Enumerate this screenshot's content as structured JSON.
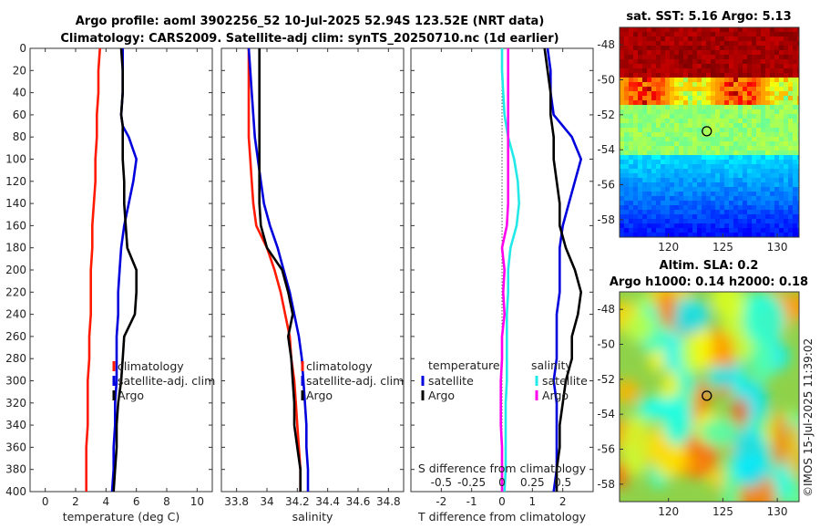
{
  "title_line1": "Argo profile: aoml 3902256_52 10-Jul-2025 52.94S 123.52E (NRT data)",
  "title_line2": "Climatology: CARS2009. Satellite-adj clim: synTS_20250710.nc (1d earlier)",
  "side_text": "©IMOS 15-Jul-2025 11:39:02",
  "colors": {
    "climatology": "#ff1a00",
    "satellite": "#0000dd",
    "argo": "#000000",
    "t_diff": "#22e8e8",
    "s_diff": "#ff00ee"
  },
  "chart_data": [
    {
      "type": "line",
      "name": "temperature",
      "xlabel": "temperature (deg C)",
      "xlim": [
        -1,
        11
      ],
      "ylim": [
        400,
        0
      ],
      "xticks": [
        "0",
        "2",
        "4",
        "6",
        "8",
        "10"
      ],
      "yticks": [
        "0",
        "20",
        "40",
        "60",
        "80",
        "100",
        "120",
        "140",
        "160",
        "180",
        "200",
        "220",
        "240",
        "260",
        "280",
        "300",
        "320",
        "340",
        "360",
        "380",
        "400"
      ],
      "legend": [
        "climatology",
        "satellite-adj. clim",
        "Argo"
      ],
      "depth": [
        0,
        20,
        40,
        60,
        70,
        80,
        100,
        120,
        140,
        160,
        180,
        200,
        220,
        240,
        260,
        280,
        300,
        320,
        340,
        360,
        380,
        400
      ],
      "series": [
        {
          "name": "climatology",
          "values": [
            3.6,
            3.5,
            3.5,
            3.4,
            3.4,
            3.4,
            3.3,
            3.3,
            3.2,
            3.1,
            3.1,
            3.0,
            3.0,
            3.0,
            2.9,
            2.9,
            2.8,
            2.8,
            2.8,
            2.7,
            2.7,
            2.7
          ]
        },
        {
          "name": "satellite-adj. clim",
          "values": [
            5.1,
            5.1,
            5.1,
            5.0,
            5.1,
            5.5,
            6.0,
            5.8,
            5.5,
            5.2,
            5.0,
            4.9,
            4.8,
            4.8,
            4.7,
            4.7,
            4.7,
            4.6,
            4.6,
            4.5,
            4.5,
            4.4
          ]
        },
        {
          "name": "Argo",
          "values": [
            5.0,
            5.1,
            5.1,
            5.0,
            5.1,
            5.1,
            5.1,
            5.2,
            5.2,
            5.3,
            5.4,
            6.0,
            6.0,
            5.9,
            5.2,
            5.1,
            5.0,
            4.8,
            4.7,
            4.7,
            4.6,
            4.5
          ]
        }
      ]
    },
    {
      "type": "line",
      "name": "salinity",
      "xlabel": "salinity",
      "xlim": [
        33.7,
        34.9
      ],
      "ylim": [
        400,
        0
      ],
      "xticks": [
        "33.8",
        "34",
        "34.2",
        "34.4",
        "34.6",
        "34.8"
      ],
      "legend": [
        "climatology",
        "satellite-adj. clim",
        "Argo"
      ],
      "depth": [
        0,
        20,
        40,
        60,
        80,
        100,
        120,
        140,
        160,
        180,
        200,
        220,
        240,
        260,
        280,
        300,
        320,
        340,
        360,
        380,
        400
      ],
      "series": [
        {
          "name": "climatology",
          "values": [
            33.88,
            33.88,
            33.88,
            33.88,
            33.88,
            33.89,
            33.9,
            33.91,
            33.93,
            34.0,
            34.05,
            34.09,
            34.12,
            34.15,
            34.16,
            34.18,
            34.19,
            34.2,
            34.21,
            34.22,
            34.22
          ]
        },
        {
          "name": "satellite-adj. clim",
          "values": [
            33.88,
            33.89,
            33.9,
            33.91,
            33.92,
            33.94,
            33.96,
            33.98,
            34.02,
            34.07,
            34.11,
            34.15,
            34.18,
            34.21,
            34.23,
            34.24,
            34.25,
            34.26,
            34.26,
            34.27,
            34.27
          ]
        },
        {
          "name": "Argo",
          "values": [
            33.95,
            33.95,
            33.95,
            33.95,
            33.95,
            33.95,
            33.95,
            33.95,
            33.96,
            34.0,
            34.1,
            34.14,
            34.17,
            34.14,
            34.16,
            34.17,
            34.18,
            34.18,
            34.2,
            34.22,
            34.22
          ]
        }
      ]
    },
    {
      "type": "line",
      "name": "difference",
      "xlabel": "T difference from climatology",
      "xlabel_top": "S difference from climatology",
      "xlim": [
        -3,
        3
      ],
      "ylim": [
        400,
        0
      ],
      "xticks": [
        "-2",
        "-1",
        "0",
        "1",
        "2"
      ],
      "xticks_top": [
        "-0.5",
        "-0.25",
        "0",
        "0.25",
        "0.5"
      ],
      "legend_temperature": {
        "title": "temperature",
        "items": [
          "satellite",
          "Argo"
        ]
      },
      "legend_salinity": {
        "title": "salinity",
        "items": [
          "satellite",
          "Argo"
        ]
      },
      "depth": [
        0,
        20,
        40,
        60,
        80,
        100,
        120,
        140,
        160,
        180,
        200,
        220,
        240,
        260,
        280,
        300,
        320,
        340,
        360,
        380,
        400
      ],
      "series": [
        {
          "name": "T satellite",
          "values": [
            1.5,
            1.6,
            1.6,
            1.7,
            2.3,
            2.6,
            2.4,
            2.2,
            2.0,
            1.9,
            1.9,
            1.9,
            1.8,
            1.8,
            1.8,
            1.7,
            1.8,
            1.8,
            1.8,
            1.8,
            1.7
          ]
        },
        {
          "name": "T Argo",
          "values": [
            1.4,
            1.5,
            1.6,
            1.6,
            1.7,
            1.7,
            1.8,
            1.9,
            1.9,
            2.1,
            2.4,
            2.6,
            2.5,
            2.3,
            2.3,
            2.1,
            2.0,
            1.9,
            1.9,
            1.8,
            1.8
          ]
        },
        {
          "name": "S satellite",
          "values": [
            0.0,
            0.0,
            0.01,
            0.02,
            0.05,
            0.1,
            0.13,
            0.14,
            0.12,
            0.07,
            0.05,
            0.05,
            0.04,
            0.04,
            0.04,
            0.04,
            0.03,
            0.03,
            0.03,
            0.03,
            0.02
          ]
        },
        {
          "name": "S Argo",
          "values": [
            0.05,
            0.05,
            0.05,
            0.05,
            0.05,
            0.05,
            0.05,
            0.05,
            0.04,
            0.0,
            0.02,
            0.01,
            0.02,
            0.0,
            0.0,
            -0.01,
            -0.01,
            -0.01,
            0.0,
            0.0,
            0.0
          ]
        }
      ]
    },
    {
      "type": "heatmap",
      "name": "sst_map",
      "title": "sat. SST: 5.16 Argo: 5.13",
      "xlim": [
        115.5,
        132
      ],
      "ylim": [
        -59,
        -47
      ],
      "xticks": [
        "120",
        "125",
        "130"
      ],
      "yticks": [
        "-48",
        "-50",
        "-52",
        "-54",
        "-56",
        "-58"
      ],
      "marker": {
        "lon": 123.52,
        "lat": -52.94
      }
    },
    {
      "type": "heatmap",
      "name": "sla_map",
      "title_line1": "Altim. SLA: 0.2",
      "title_line2": "Argo h1000: 0.14 h2000: 0.18",
      "xlim": [
        115.5,
        132
      ],
      "ylim": [
        -59,
        -47
      ],
      "xticks": [
        "120",
        "125",
        "130"
      ],
      "yticks": [
        "-48",
        "-50",
        "-52",
        "-54",
        "-56",
        "-58"
      ],
      "marker": {
        "lon": 123.52,
        "lat": -52.94
      }
    }
  ]
}
